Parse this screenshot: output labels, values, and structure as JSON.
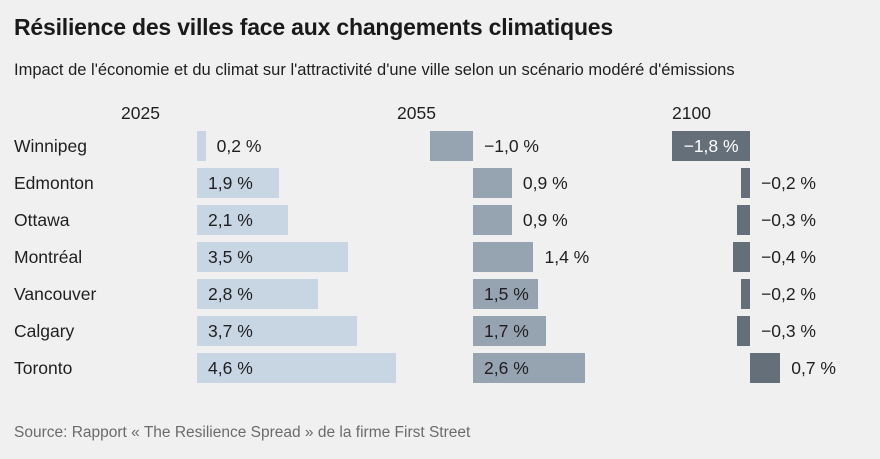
{
  "header": {
    "title": "Résilience des villes face aux changements climatiques",
    "subtitle": "Impact de l'économie et du climat sur l'attractivité d'une ville selon un scénario modéré d'émissions"
  },
  "source": "Source: Rapport « The Resilience Spread » de la firme First Street",
  "colors": {
    "background": "#f0f0f1",
    "bar_2025": "#c8d6e4",
    "bar_2055": "#96a4b1",
    "bar_2100": "#656f7a",
    "text_dark": "#1f1f1f",
    "text_inside_negative": "#ffffff",
    "source_text": "#6b6b6b"
  },
  "chart_data": {
    "type": "bar",
    "orientation": "horizontal",
    "title": "Résilience des villes face aux changements climatiques",
    "subtitle": "Impact de l'économie et du climat sur l'attractivité d'une ville selon un scénario modéré d'émissions",
    "unit": "%",
    "value_format": "french decimal comma, e.g. −1,0 %",
    "legend_position": "column headers above each panel",
    "grid": false,
    "categories": [
      "Winnipeg",
      "Edmonton",
      "Ottawa",
      "Montréal",
      "Vancouver",
      "Calgary",
      "Toronto"
    ],
    "series": [
      {
        "name": "2025",
        "values": [
          0.2,
          1.9,
          2.1,
          3.5,
          2.8,
          3.7,
          4.6
        ],
        "labels": [
          "0,2 %",
          "1,9 %",
          "2,1 %",
          "3,5 %",
          "2,8 %",
          "3,7 %",
          "4,6 %"
        ]
      },
      {
        "name": "2055",
        "values": [
          -1.0,
          0.9,
          0.9,
          1.4,
          1.5,
          1.7,
          2.6
        ],
        "labels": [
          "−1,0 %",
          "0,9 %",
          "0,9 %",
          "1,4 %",
          "1,5 %",
          "1,7 %",
          "2,6 %"
        ]
      },
      {
        "name": "2100",
        "values": [
          -1.8,
          -0.2,
          -0.3,
          -0.4,
          -0.2,
          -0.3,
          0.7
        ],
        "labels": [
          "−1,8 %",
          "−0,2 %",
          "−0,3 %",
          "−0,4 %",
          "−0,2 %",
          "−0,3 %",
          "0,7 %"
        ]
      }
    ]
  }
}
